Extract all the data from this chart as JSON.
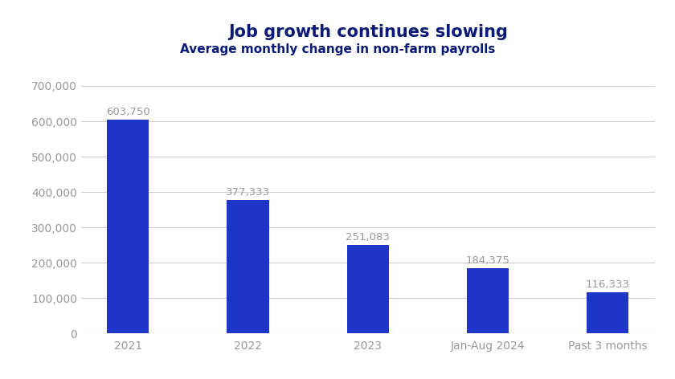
{
  "title": "Job growth continues slowing",
  "subtitle": "Average monthly change in non-farm payrolls",
  "categories": [
    "2021",
    "2022",
    "2023",
    "Jan-Aug 2024",
    "Past 3 months"
  ],
  "values": [
    603750,
    377333,
    251083,
    184375,
    116333
  ],
  "bar_color": "#1e35c8",
  "title_color": "#0a1a7a",
  "subtitle_color": "#0a1a7a",
  "label_color": "#999999",
  "tick_color": "#999999",
  "ylim": [
    0,
    750000
  ],
  "yticks": [
    0,
    100000,
    200000,
    300000,
    400000,
    500000,
    600000,
    700000
  ],
  "background_color": "#ffffff",
  "grid_color": "#cccccc",
  "title_fontsize": 15,
  "subtitle_fontsize": 11,
  "bar_label_fontsize": 9.5,
  "tick_fontsize": 10,
  "bar_width": 0.35
}
